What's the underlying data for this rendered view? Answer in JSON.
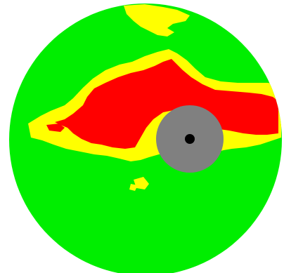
{
  "palette": {
    "background": "#ffffff",
    "green": "#00ee00",
    "yellow": "#ffff00",
    "red": "#ff0000",
    "gray": "#808080",
    "black": "#000000"
  },
  "legend_semantics": [
    "green",
    "yellow",
    "red",
    "gray",
    "black"
  ]
}
